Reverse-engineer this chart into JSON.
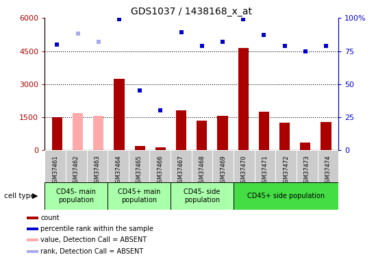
{
  "title": "GDS1037 / 1438168_x_at",
  "samples": [
    "GSM37461",
    "GSM37462",
    "GSM37463",
    "GSM37464",
    "GSM37465",
    "GSM37466",
    "GSM37467",
    "GSM37468",
    "GSM37469",
    "GSM37470",
    "GSM37471",
    "GSM37472",
    "GSM37473",
    "GSM37474"
  ],
  "count_values": [
    1500,
    1700,
    1550,
    3250,
    200,
    150,
    1800,
    1350,
    1550,
    4650,
    1750,
    1250,
    350,
    1300
  ],
  "count_absent": [
    false,
    true,
    true,
    false,
    false,
    false,
    false,
    false,
    false,
    false,
    false,
    false,
    false,
    false
  ],
  "rank_values": [
    80,
    88,
    82,
    99,
    45,
    30,
    89,
    79,
    82,
    99,
    87,
    79,
    75,
    79
  ],
  "rank_absent": [
    false,
    true,
    true,
    false,
    false,
    false,
    false,
    false,
    false,
    false,
    false,
    false,
    false,
    false
  ],
  "ylim_left": [
    0,
    6000
  ],
  "ylim_right": [
    0,
    100
  ],
  "yticks_left": [
    0,
    1500,
    3000,
    4500,
    6000
  ],
  "yticks_right": [
    0,
    25,
    50,
    75,
    100
  ],
  "grid_lines": [
    1500,
    3000,
    4500
  ],
  "cell_type_groups": [
    {
      "label": "CD45- main\npopulation",
      "start": 0,
      "end": 3,
      "color": "#aaffaa"
    },
    {
      "label": "CD45+ main\npopulation",
      "start": 3,
      "end": 6,
      "color": "#aaffaa"
    },
    {
      "label": "CD45- side\npopulation",
      "start": 6,
      "end": 9,
      "color": "#aaffaa"
    },
    {
      "label": "CD45+ side population",
      "start": 9,
      "end": 14,
      "color": "#44dd44"
    }
  ],
  "bar_color_normal": "#aa0000",
  "bar_color_absent": "#ffaaaa",
  "rank_color_normal": "#0000cc",
  "rank_color_absent": "#aaaaee",
  "bar_width": 0.5,
  "legend_items": [
    {
      "label": "count",
      "color": "#aa0000"
    },
    {
      "label": "percentile rank within the sample",
      "color": "#0000cc"
    },
    {
      "label": "value, Detection Call = ABSENT",
      "color": "#ffaaaa"
    },
    {
      "label": "rank, Detection Call = ABSENT",
      "color": "#aaaaee"
    }
  ],
  "background_color": "#ffffff",
  "xtick_bg": "#cccccc"
}
